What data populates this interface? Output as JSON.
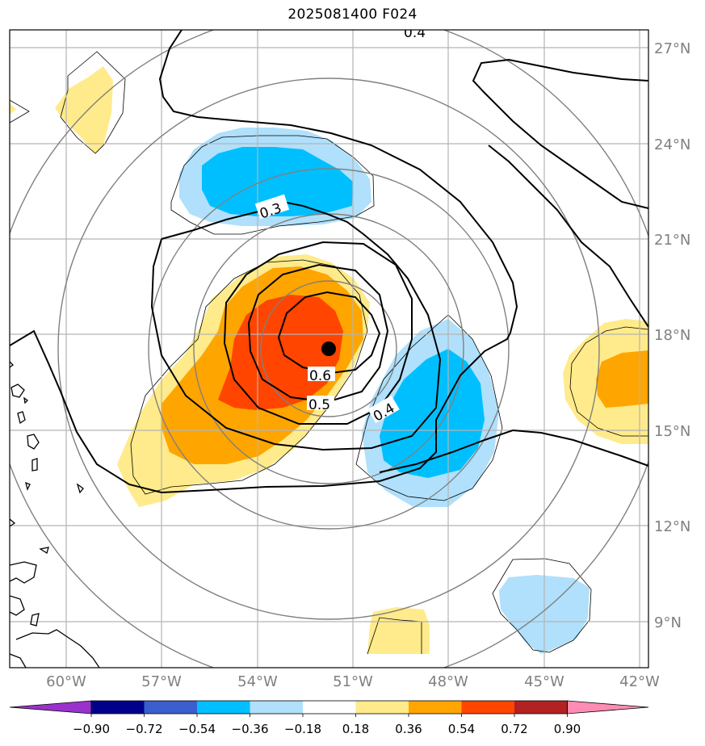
{
  "title": "2025081400 F024",
  "map": {
    "lat_labels": [
      "27°N",
      "24°N",
      "21°N",
      "18°N",
      "15°N",
      "12°N",
      "9°N"
    ],
    "lon_labels": [
      "60°W",
      "57°W",
      "54°W",
      "51°W",
      "48°W",
      "45°W",
      "42°W"
    ],
    "contour_labels": [
      "0.3",
      "0.4",
      "0.4",
      "0.5",
      "0.6"
    ],
    "storm_marker": "storm-center"
  },
  "colorbar": {
    "ticks": [
      "−0.90",
      "−0.72",
      "−0.54",
      "−0.36",
      "−0.18",
      "0.18",
      "0.36",
      "0.54",
      "0.72",
      "0.90"
    ],
    "colors": [
      "#9932cc",
      "#00008b",
      "#3a5fcd",
      "#00bfff",
      "#b0e0fb",
      "#ffffff",
      "#ffeb8b",
      "#ffa500",
      "#ff4500",
      "#b22222",
      "#ff8cb4"
    ]
  }
}
